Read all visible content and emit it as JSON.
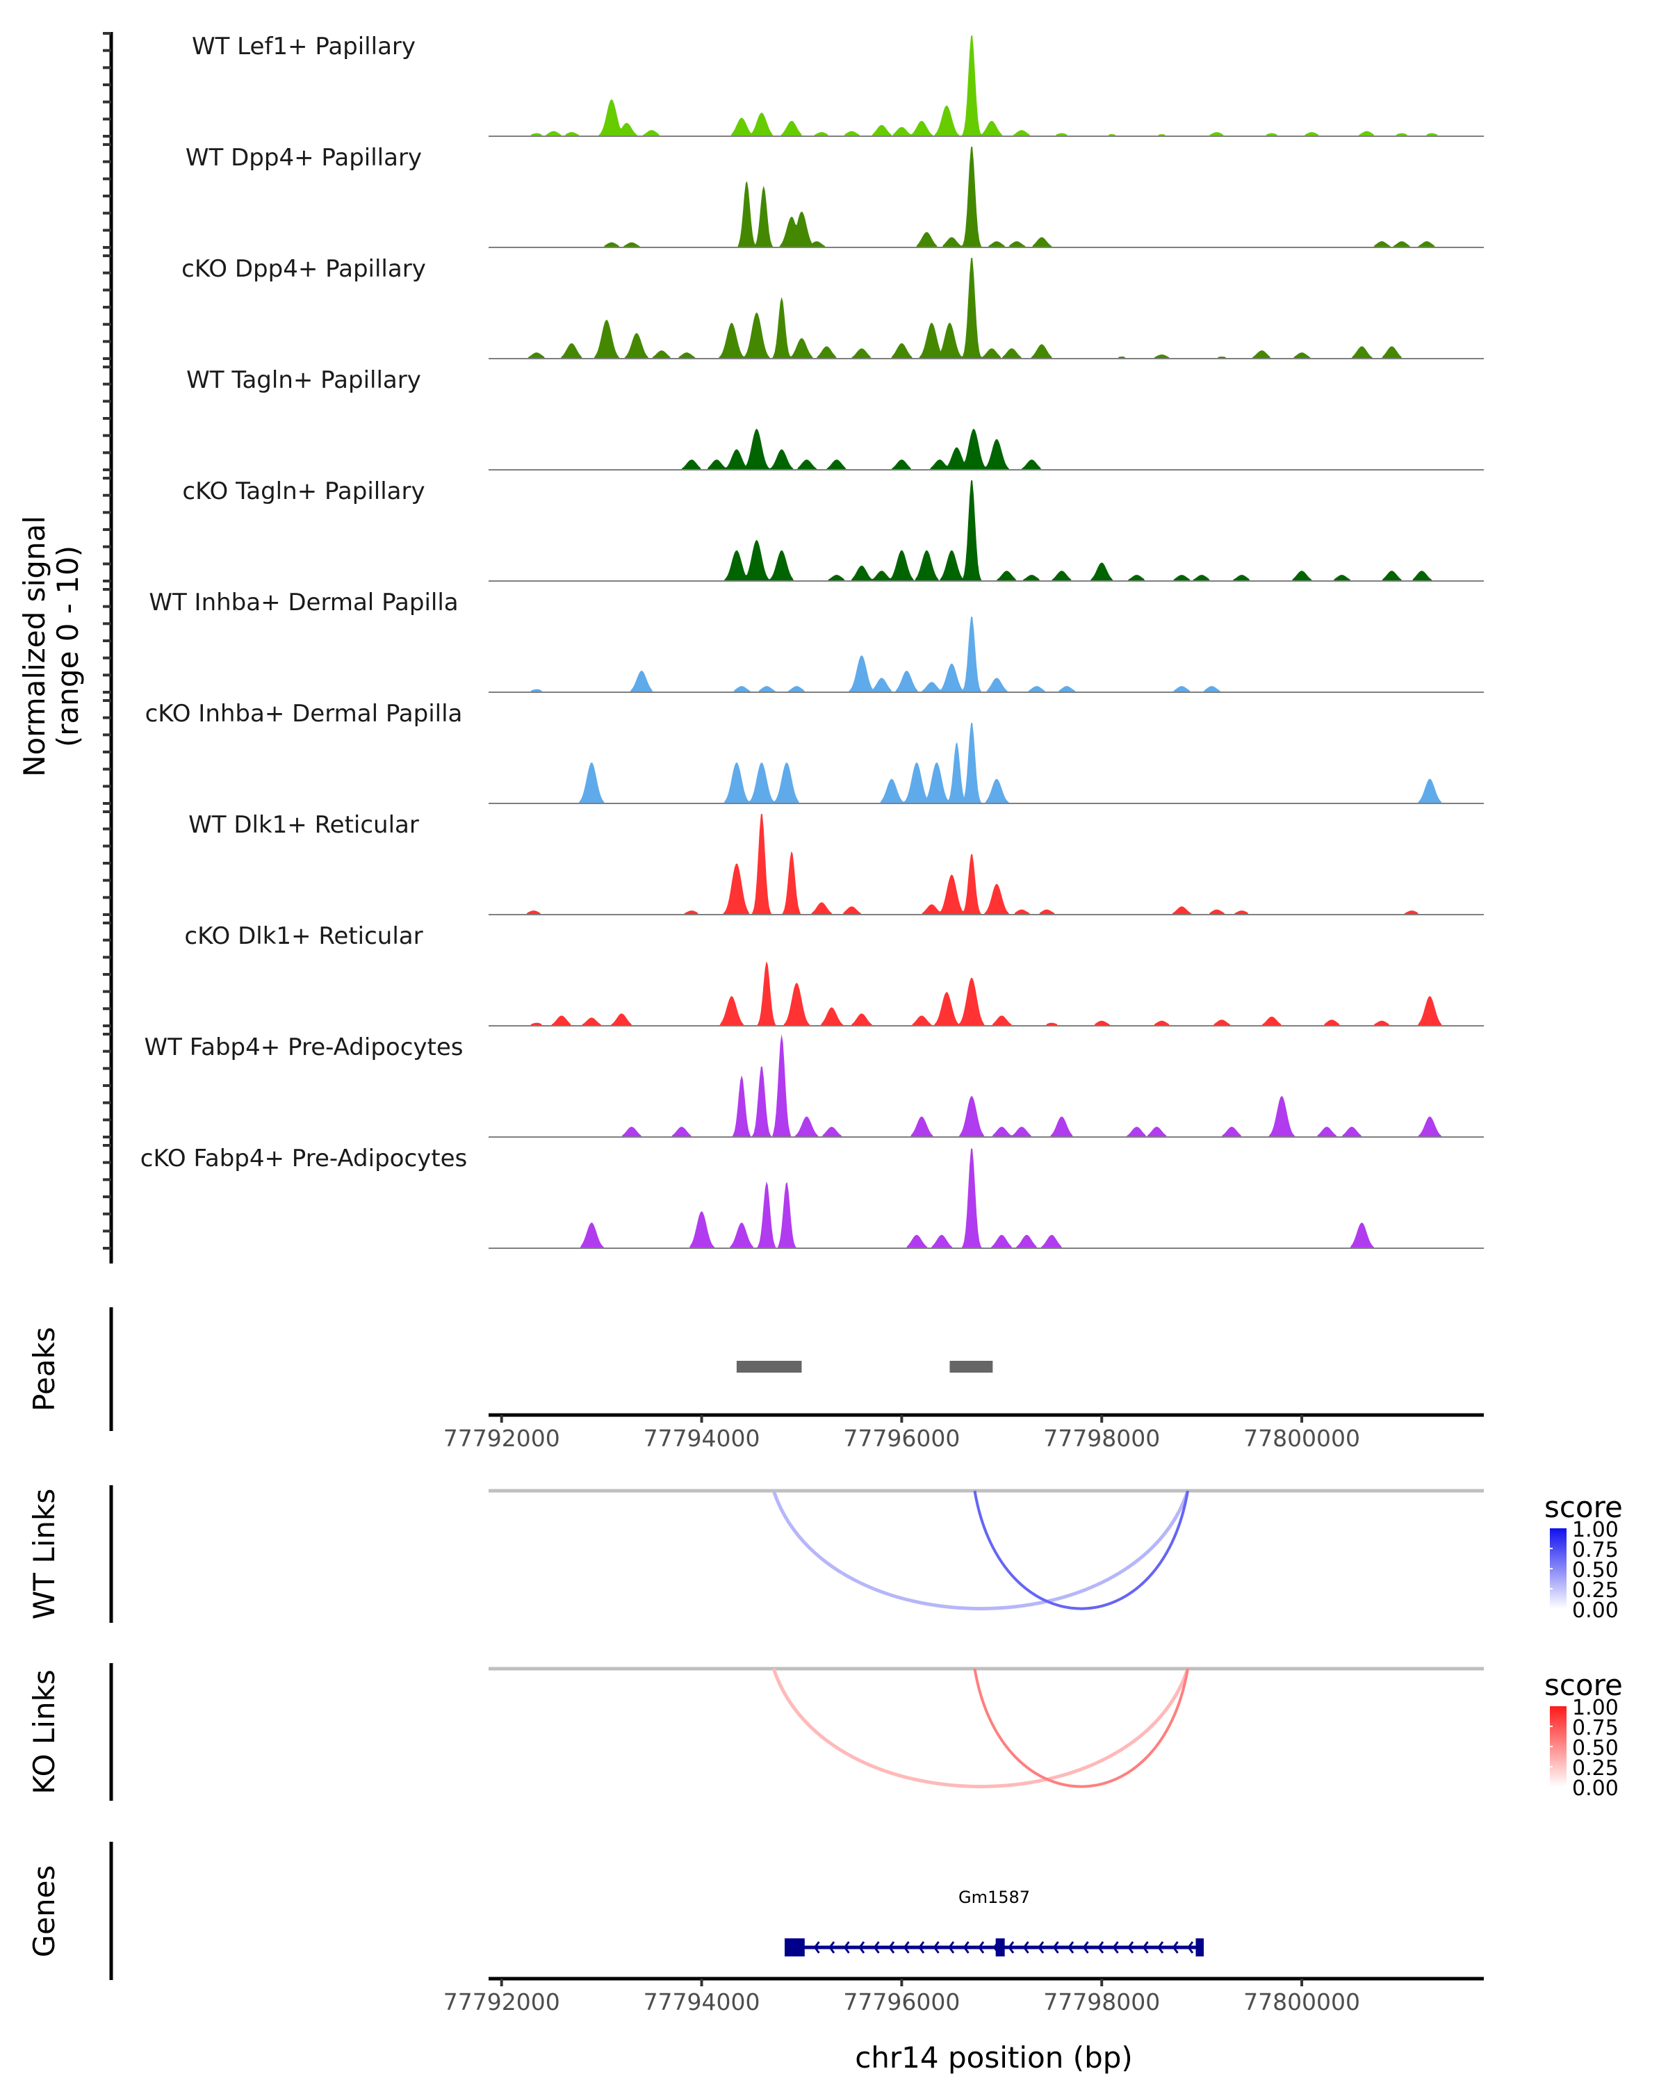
{
  "chart_data": {
    "type": "area",
    "title": "",
    "chromosome": "chr14",
    "xlabel": "chr14 position (bp)",
    "ylabel": "Normalized signal\n(range 0 - 10)",
    "ylabel_lines": [
      "Normalized signal",
      "(range 0 - 10)"
    ],
    "xlim": [
      77791870,
      77801820
    ],
    "ylim": [
      0,
      10
    ],
    "x_ticks": [
      77792000,
      77794000,
      77796000,
      77798000,
      77800000
    ],
    "x_tick_labels": [
      "77792000",
      "77794000",
      "77796000",
      "77798000",
      "77800000"
    ],
    "coverage_tracks": [
      {
        "name": "WT Lef1+ Papillary",
        "color": "#66CC00",
        "peaks": [
          [
            77792350,
            0.3
          ],
          [
            77792520,
            0.5
          ],
          [
            77792700,
            0.4
          ],
          [
            77793100,
            3.6
          ],
          [
            77793250,
            1.3
          ],
          [
            77793500,
            0.6
          ],
          [
            77794400,
            1.8
          ],
          [
            77794600,
            2.3
          ],
          [
            77794900,
            1.5
          ],
          [
            77795200,
            0.4
          ],
          [
            77795500,
            0.5
          ],
          [
            77795800,
            1.1
          ],
          [
            77796000,
            0.9
          ],
          [
            77796200,
            1.5
          ],
          [
            77796450,
            3.0
          ],
          [
            77796700,
            10.0
          ],
          [
            77796900,
            1.5
          ],
          [
            77797200,
            0.6
          ],
          [
            77797600,
            0.3
          ],
          [
            77798100,
            0.2
          ],
          [
            77798600,
            0.2
          ],
          [
            77799150,
            0.4
          ],
          [
            77799700,
            0.3
          ],
          [
            77800100,
            0.4
          ],
          [
            77800650,
            0.5
          ],
          [
            77801000,
            0.3
          ],
          [
            77801300,
            0.3
          ]
        ]
      },
      {
        "name": "WT Dpp4+ Papillary",
        "color": "#448800",
        "peaks": [
          [
            77793100,
            0.5
          ],
          [
            77793300,
            0.5
          ],
          [
            77794450,
            6.5
          ],
          [
            77794620,
            6.0
          ],
          [
            77794900,
            3.0
          ],
          [
            77795000,
            3.5
          ],
          [
            77795150,
            0.6
          ],
          [
            77796250,
            1.5
          ],
          [
            77796500,
            1.0
          ],
          [
            77796700,
            10.0
          ],
          [
            77796950,
            0.6
          ],
          [
            77797150,
            0.6
          ],
          [
            77797400,
            1.0
          ],
          [
            77800800,
            0.6
          ],
          [
            77801000,
            0.6
          ],
          [
            77801250,
            0.6
          ]
        ]
      },
      {
        "name": "cKO Dpp4+ Papillary",
        "color": "#448800",
        "peaks": [
          [
            77792350,
            0.6
          ],
          [
            77792700,
            1.5
          ],
          [
            77793050,
            3.8
          ],
          [
            77793350,
            2.5
          ],
          [
            77793600,
            0.8
          ],
          [
            77793850,
            0.6
          ],
          [
            77794300,
            3.5
          ],
          [
            77794550,
            4.5
          ],
          [
            77794800,
            6.0
          ],
          [
            77795000,
            2.0
          ],
          [
            77795250,
            1.2
          ],
          [
            77795600,
            1.0
          ],
          [
            77796000,
            1.5
          ],
          [
            77796300,
            3.5
          ],
          [
            77796480,
            3.5
          ],
          [
            77796700,
            10.0
          ],
          [
            77796900,
            1.0
          ],
          [
            77797100,
            1.0
          ],
          [
            77797400,
            1.4
          ],
          [
            77798200,
            0.2
          ],
          [
            77798600,
            0.4
          ],
          [
            77799200,
            0.2
          ],
          [
            77799600,
            0.8
          ],
          [
            77800000,
            0.6
          ],
          [
            77800600,
            1.2
          ],
          [
            77800900,
            1.2
          ]
        ]
      },
      {
        "name": "WT Tagln+ Papillary",
        "color": "#006400",
        "peaks": [
          [
            77793900,
            1.0
          ],
          [
            77794150,
            1.0
          ],
          [
            77794350,
            2.0
          ],
          [
            77794550,
            4.0
          ],
          [
            77794800,
            2.0
          ],
          [
            77795050,
            1.0
          ],
          [
            77795350,
            1.0
          ],
          [
            77796000,
            1.0
          ],
          [
            77796380,
            1.0
          ],
          [
            77796550,
            2.2
          ],
          [
            77796720,
            4.0
          ],
          [
            77796950,
            3.0
          ],
          [
            77797300,
            1.0
          ]
        ]
      },
      {
        "name": "cKO Tagln+ Papillary",
        "color": "#006400",
        "peaks": [
          [
            77794350,
            3.0
          ],
          [
            77794550,
            4.0
          ],
          [
            77794800,
            3.0
          ],
          [
            77795350,
            0.6
          ],
          [
            77795600,
            1.5
          ],
          [
            77795800,
            1.0
          ],
          [
            77796000,
            3.0
          ],
          [
            77796250,
            3.0
          ],
          [
            77796500,
            3.0
          ],
          [
            77796700,
            10.0
          ],
          [
            77797050,
            1.0
          ],
          [
            77797300,
            0.6
          ],
          [
            77797600,
            1.0
          ],
          [
            77798000,
            1.8
          ],
          [
            77798350,
            0.6
          ],
          [
            77798800,
            0.6
          ],
          [
            77799000,
            0.6
          ],
          [
            77799400,
            0.6
          ],
          [
            77800000,
            1.0
          ],
          [
            77800400,
            0.6
          ],
          [
            77800900,
            1.0
          ],
          [
            77801200,
            1.0
          ]
        ]
      },
      {
        "name": "WT Inhba+ Dermal Papilla",
        "color": "#5FAAEA",
        "peaks": [
          [
            77792350,
            0.3
          ],
          [
            77793400,
            2.1
          ],
          [
            77794400,
            0.6
          ],
          [
            77794650,
            0.6
          ],
          [
            77794950,
            0.6
          ],
          [
            77795600,
            3.6
          ],
          [
            77795800,
            1.4
          ],
          [
            77796050,
            2.1
          ],
          [
            77796300,
            1.0
          ],
          [
            77796500,
            2.8
          ],
          [
            77796700,
            7.5
          ],
          [
            77796950,
            1.4
          ],
          [
            77797350,
            0.6
          ],
          [
            77797650,
            0.6
          ],
          [
            77798800,
            0.6
          ],
          [
            77799100,
            0.6
          ]
        ]
      },
      {
        "name": "cKO Inhba+ Dermal Papilla",
        "color": "#5FAAEA",
        "peaks": [
          [
            77792900,
            4.0
          ],
          [
            77794350,
            4.0
          ],
          [
            77794600,
            4.0
          ],
          [
            77794850,
            4.0
          ],
          [
            77795900,
            2.4
          ],
          [
            77796150,
            4.0
          ],
          [
            77796350,
            4.0
          ],
          [
            77796550,
            6.0
          ],
          [
            77796700,
            8.0
          ],
          [
            77796950,
            2.4
          ],
          [
            77801280,
            2.4
          ]
        ]
      },
      {
        "name": "WT Dlk1+ Reticular",
        "color": "#FF3333",
        "peaks": [
          [
            77792320,
            0.4
          ],
          [
            77793900,
            0.4
          ],
          [
            77794350,
            5.0
          ],
          [
            77794600,
            10.0
          ],
          [
            77794900,
            6.2
          ],
          [
            77795200,
            1.2
          ],
          [
            77795500,
            0.8
          ],
          [
            77796300,
            1.0
          ],
          [
            77796500,
            3.9
          ],
          [
            77796700,
            6.0
          ],
          [
            77796950,
            3.0
          ],
          [
            77797200,
            0.5
          ],
          [
            77797450,
            0.5
          ],
          [
            77798800,
            0.8
          ],
          [
            77799150,
            0.5
          ],
          [
            77799400,
            0.4
          ],
          [
            77801100,
            0.4
          ]
        ]
      },
      {
        "name": "cKO Dlk1+ Reticular",
        "color": "#FF3333",
        "peaks": [
          [
            77792350,
            0.3
          ],
          [
            77792600,
            1.0
          ],
          [
            77792900,
            0.8
          ],
          [
            77793200,
            1.2
          ],
          [
            77794300,
            2.9
          ],
          [
            77794650,
            6.3
          ],
          [
            77794950,
            4.2
          ],
          [
            77795300,
            1.8
          ],
          [
            77795600,
            1.2
          ],
          [
            77796200,
            1.0
          ],
          [
            77796450,
            3.3
          ],
          [
            77796700,
            4.7
          ],
          [
            77797000,
            1.0
          ],
          [
            77797500,
            0.3
          ],
          [
            77798000,
            0.5
          ],
          [
            77798600,
            0.5
          ],
          [
            77799200,
            0.6
          ],
          [
            77799700,
            0.9
          ],
          [
            77800300,
            0.6
          ],
          [
            77800800,
            0.5
          ],
          [
            77801280,
            2.9
          ]
        ]
      },
      {
        "name": "WT Fabp4+ Pre-Adipocytes",
        "color": "#B13BEE",
        "peaks": [
          [
            77793300,
            1.0
          ],
          [
            77793800,
            1.0
          ],
          [
            77794400,
            6.0
          ],
          [
            77794600,
            7.0
          ],
          [
            77794800,
            10.0
          ],
          [
            77795050,
            2.0
          ],
          [
            77795300,
            1.0
          ],
          [
            77796200,
            2.0
          ],
          [
            77796700,
            4.0
          ],
          [
            77797000,
            1.0
          ],
          [
            77797200,
            1.0
          ],
          [
            77797600,
            2.0
          ],
          [
            77798350,
            1.0
          ],
          [
            77798550,
            1.0
          ],
          [
            77799300,
            1.0
          ],
          [
            77799800,
            4.0
          ],
          [
            77800250,
            1.0
          ],
          [
            77800500,
            1.0
          ],
          [
            77801280,
            2.0
          ]
        ]
      },
      {
        "name": "cKO Fabp4+ Pre-Adipocytes",
        "color": "#B13BEE",
        "peaks": [
          [
            77792900,
            2.5
          ],
          [
            77794000,
            3.6
          ],
          [
            77794400,
            2.5
          ],
          [
            77794650,
            6.5
          ],
          [
            77794850,
            6.5
          ],
          [
            77796150,
            1.3
          ],
          [
            77796400,
            1.3
          ],
          [
            77796700,
            9.9
          ],
          [
            77797000,
            1.3
          ],
          [
            77797250,
            1.3
          ],
          [
            77797500,
            1.3
          ],
          [
            77800600,
            2.5
          ]
        ]
      }
    ],
    "peaks_track": {
      "label": "Peaks",
      "color": "#666666",
      "regions": [
        [
          77794350,
          77795000
        ],
        [
          77796480,
          77796910
        ]
      ]
    },
    "link_tracks": [
      {
        "label": "WT Links",
        "links": [
          {
            "start": 77794720,
            "end": 77798860,
            "score": 0.3
          },
          {
            "start": 77796730,
            "end": 77798860,
            "score": 0.7
          }
        ],
        "legend": {
          "title": "score",
          "low_color": "#FFFFFF",
          "high_color": "#1010F0",
          "ticks": [
            "1.00",
            "0.75",
            "0.50",
            "0.25",
            "0.00"
          ]
        }
      },
      {
        "label": "KO Links",
        "links": [
          {
            "start": 77794720,
            "end": 77798860,
            "score": 0.3
          },
          {
            "start": 77796730,
            "end": 77798860,
            "score": 0.6
          }
        ],
        "legend": {
          "title": "score",
          "low_color": "#FFFFFF",
          "high_color": "#FF1A1A",
          "ticks": [
            "1.00",
            "0.75",
            "0.50",
            "0.25",
            "0.00"
          ]
        }
      }
    ],
    "genes_track": {
      "label": "Genes",
      "color": "#00008B",
      "genes": [
        {
          "name": "Gm1587",
          "start": 77794830,
          "end": 77799020,
          "strand": "-",
          "exons": [
            [
              77794830,
              77795030
            ],
            [
              77796940,
              77797030
            ],
            [
              77798940,
              77799020
            ]
          ]
        }
      ]
    }
  }
}
